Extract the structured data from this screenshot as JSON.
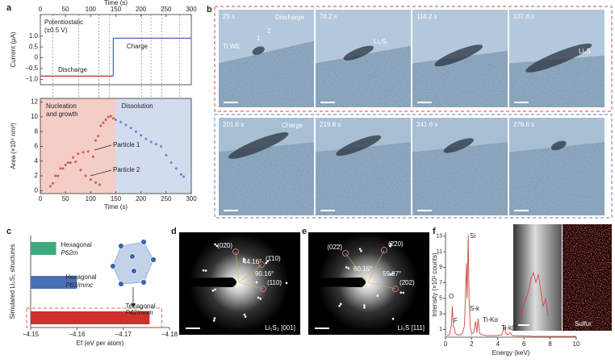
{
  "panel_labels": [
    "a",
    "b",
    "c",
    "d",
    "e",
    "f"
  ],
  "chart_data": [
    {
      "type": "line",
      "xlabel": "Time (s)",
      "ylabel": "Current (μA)",
      "xlim": [
        0,
        300
      ],
      "xticks": [
        0,
        50,
        100,
        150,
        200,
        250,
        300
      ],
      "ylim": [
        -1.25,
        2.0
      ],
      "yticks": [
        {
          "value": 1,
          "label": "1.0"
        },
        0.5,
        0,
        {
          "value": -0.5,
          "label": "−0.5"
        },
        {
          "value": -1,
          "label": "−1.0"
        }
      ],
      "annotations": [
        "Potentiostatic",
        "(±0.5 V)"
      ],
      "event_times": [
        25,
        76.2,
        116.2,
        137.6,
        201.6,
        219.8,
        241.6,
        276.6
      ],
      "series": [
        {
          "name": "Discharge",
          "color": "#d03a3a",
          "x": [
            0,
            145
          ],
          "values": [
            -0.85,
            -0.85
          ]
        },
        {
          "name": "Charge",
          "color": "#4a6fc0",
          "x": [
            145,
            145,
            300
          ],
          "values": [
            -0.85,
            0.9,
            0.9
          ]
        }
      ]
    },
    {
      "type": "scatter",
      "xlabel": "Time (s)",
      "ylabel": "Area (×10⁴ nm²)",
      "xlim": [
        0,
        300
      ],
      "xticks": [
        0,
        50,
        100,
        150,
        200,
        250,
        300
      ],
      "ylim": [
        -0.4,
        12.5
      ],
      "yticks": [
        0,
        2,
        4,
        6,
        8,
        10,
        12
      ],
      "regions": [
        {
          "label": [
            "Nucleation",
            "and growth"
          ],
          "x": [
            0,
            150
          ],
          "color": "#f5cdc7"
        },
        {
          "label": [
            "Dissolution"
          ],
          "x": [
            150,
            300
          ],
          "color": "#d3dcee"
        }
      ],
      "series": [
        {
          "name": "Particle 1",
          "color": "#d03a3a",
          "x": [
            25,
            35,
            45,
            55,
            65,
            75,
            85,
            95,
            105,
            110,
            115,
            120,
            125,
            130,
            135,
            140,
            145
          ],
          "values": [
            1.0,
            2.0,
            3.0,
            3.8,
            4.5,
            5.0,
            5.2,
            5.3,
            4.6,
            6.8,
            7.4,
            8.8,
            9.2,
            9.6,
            10.0,
            10.1,
            9.8
          ]
        },
        {
          "name": "Particle 2",
          "color": "#d03a3a",
          "x": [
            20,
            30,
            40,
            50,
            60,
            70,
            80,
            90,
            100,
            110,
            118
          ],
          "values": [
            0.6,
            2.0,
            3.0,
            3.5,
            3.8,
            3.9,
            2.8,
            2.0,
            1.5,
            1.1,
            0.8
          ]
        },
        {
          "color": "#4a6fc0",
          "x": [
            150,
            160,
            170,
            180,
            190,
            200,
            210,
            220,
            230,
            240,
            250,
            260,
            270,
            280,
            285
          ],
          "values": [
            9.6,
            9.3,
            8.9,
            8.5,
            8.0,
            7.5,
            7.0,
            6.6,
            6.3,
            6.0,
            4.8,
            3.8,
            3.0,
            2.2,
            1.9
          ]
        }
      ]
    },
    {
      "type": "bar",
      "orientation": "horizontal",
      "xlabel": "Ef (eV per atom)",
      "ylabel": "Simulated Li₂S₂ structures",
      "categories": [
        "Hexagonal",
        "Hexagonal",
        "Tetragonal"
      ],
      "space_groups": [
        "P62m",
        "P63/mmc",
        "P42/mnm"
      ],
      "values": [
        -4.1555,
        -4.16,
        -4.1757
      ],
      "colors": [
        "#3daa7e",
        "#4a6fb5",
        "#d0302b"
      ],
      "xlim": [
        -4.15,
        -4.18
      ],
      "xticks": [
        {
          "value": -4.15,
          "label": "−4.15"
        },
        {
          "value": -4.16,
          "label": "−4.16"
        },
        {
          "value": -4.17,
          "label": "−4.17"
        },
        {
          "value": -4.18,
          "label": "−4.18"
        }
      ]
    },
    {
      "type": "line",
      "xlabel": "Energy (keV)",
      "ylabel": "Intensity (×10³ counts)",
      "xlim": [
        0,
        10
      ],
      "xticks": [
        0,
        2,
        4,
        6,
        8,
        10
      ],
      "ylim": [
        0,
        13.5
      ],
      "yticks": [
        1,
        3,
        5,
        7,
        9,
        11,
        13
      ],
      "peak_labels": [
        "O",
        "F",
        "Si",
        "S-k",
        "Ti-Kα",
        "Ti-kβ"
      ],
      "inset_label": "Sulfur",
      "series": [
        {
          "color": "#d9534f",
          "x": [
            0.1,
            0.3,
            0.45,
            0.52,
            0.6,
            0.68,
            0.75,
            0.9,
            1.1,
            1.3,
            1.45,
            1.5,
            1.6,
            1.65,
            1.74,
            1.8,
            1.9,
            2.0,
            2.15,
            2.3,
            2.4,
            2.5,
            2.6,
            2.8,
            3.2,
            3.8,
            4.3,
            4.45,
            4.51,
            4.6,
            4.75,
            4.93,
            5.1,
            6,
            7,
            8,
            9,
            10
          ],
          "values": [
            0.2,
            0.3,
            1.5,
            4.0,
            1.4,
            1.2,
            0.5,
            0.3,
            0.3,
            0.5,
            1.5,
            4,
            9.5,
            5,
            13.2,
            5,
            1.2,
            0.4,
            0.6,
            2,
            0.6,
            2.4,
            0.5,
            0.3,
            0.2,
            0.2,
            0.3,
            1,
            1.4,
            0.6,
            0.3,
            0.6,
            0.2,
            0.15,
            0.1,
            0.1,
            0.1,
            0.1
          ]
        }
      ]
    }
  ],
  "micrographs": {
    "rows": [
      {
        "tiles": [
          {
            "time": "25 s",
            "labels": [
              "Discharge",
              "1",
              "2",
              "Ti WE"
            ]
          },
          {
            "time": "76.2 s",
            "labels": [
              "Li₂S₂"
            ]
          },
          {
            "time": "116.2 s",
            "labels": []
          },
          {
            "time": "137.6 s",
            "labels": [
              "Li₂S"
            ]
          }
        ]
      },
      {
        "tiles": [
          {
            "time": "201.6 s",
            "labels": [
              "Charge"
            ]
          },
          {
            "time": "219.8 s",
            "labels": []
          },
          {
            "time": "241.6 s",
            "labels": []
          },
          {
            "time": "276.6 s",
            "labels": []
          }
        ]
      }
    ]
  },
  "diffraction": [
    {
      "spots": [
        "(02̄0)",
        "(1̄10)",
        "(110)"
      ],
      "angles": [
        "44.16°",
        "90.16°"
      ],
      "caption": "Li₂S₂ [001]"
    },
    {
      "spots": [
        "(02̄2̄)",
        "(2̄20)",
        "(2̄02)"
      ],
      "angles": [
        "60.15°",
        "59.87°"
      ],
      "caption": "Li₂S [111]"
    }
  ]
}
